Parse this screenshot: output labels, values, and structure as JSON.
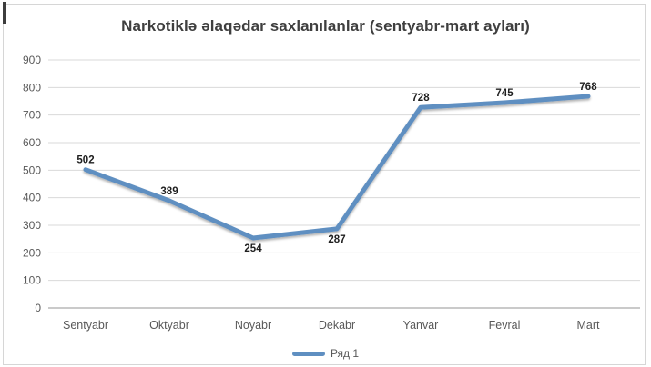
{
  "frame": {
    "background": "#ffffff",
    "border_color": "#d6d6d6",
    "artifact_color": "#3d3d3d"
  },
  "chart_data": {
    "type": "line",
    "title": "Narkotiklə əlaqədar saxlanılanlar (sentyabr-mart ayları)",
    "categories": [
      "Sentyabr",
      "Oktyabr",
      "Noyabr",
      "Dekabr",
      "Yanvar",
      "Fevral",
      "Mart"
    ],
    "series": [
      {
        "name": "Ряд 1",
        "values": [
          502,
          389,
          254,
          287,
          728,
          745,
          768
        ]
      }
    ],
    "y_ticks": [
      0,
      100,
      200,
      300,
      400,
      500,
      600,
      700,
      800,
      900
    ],
    "ylim": [
      0,
      900
    ],
    "grid": true,
    "data_labels": true,
    "label_positions": [
      "above",
      "above",
      "below",
      "below",
      "above",
      "above",
      "above"
    ],
    "legend_position": "bottom",
    "line_color": "#5f8fc1",
    "gridline_color": "#d9d9d9",
    "axis_line_color": "#c2c2c2",
    "title_color": "#3f3f3f",
    "tick_label_color": "#595959",
    "data_label_color": "#1f1f1f"
  }
}
